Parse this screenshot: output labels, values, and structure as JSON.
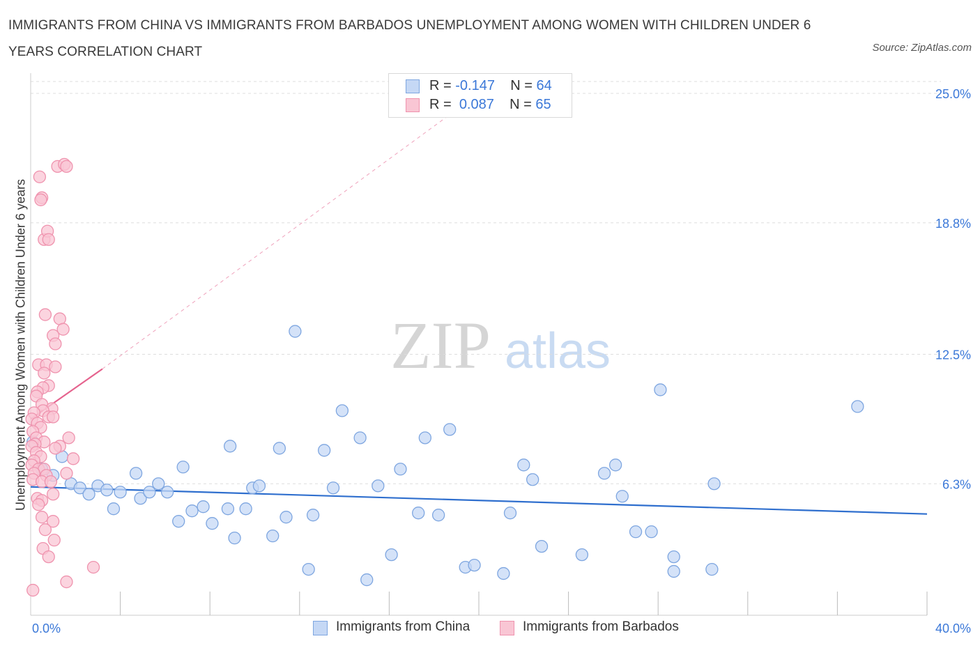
{
  "title": "IMMIGRANTS FROM CHINA VS IMMIGRANTS FROM BARBADOS UNEMPLOYMENT AMONG WOMEN WITH CHILDREN UNDER 6 YEARS CORRELATION CHART",
  "source": "Source: ZipAtlas.com",
  "watermark": {
    "zip": "ZIP",
    "atlas": "atlas"
  },
  "legend_top": {
    "china": {
      "r_label": "R =",
      "r_value": "-0.147",
      "n_label": "N =",
      "n_value": "64"
    },
    "barbados": {
      "r_label": "R =",
      "r_value": "0.087",
      "n_label": "N =",
      "n_value": "65"
    }
  },
  "legend_bottom": {
    "china": "Immigrants from China",
    "barbados": "Immigrants from Barbados"
  },
  "colors": {
    "china_fill": "#c5d8f5",
    "china_stroke": "#7ea6e0",
    "china_line": "#2f6fce",
    "barbados_fill": "#f9c6d4",
    "barbados_stroke": "#ef93ae",
    "barbados_line": "#e5638e",
    "tick_label": "#3b78d8",
    "grid": "#dddddd"
  },
  "chart_data": {
    "type": "scatter",
    "title": "IMMIGRANTS FROM CHINA VS IMMIGRANTS FROM BARBADOS UNEMPLOYMENT AMONG WOMEN WITH CHILDREN UNDER 6 YEARS CORRELATION CHART",
    "xlabel": "",
    "ylabel": "Unemployment Among Women with Children Under 6 years",
    "xlim": [
      0,
      40
    ],
    "ylim": [
      0,
      25.0
    ],
    "x_tick_labels": [
      {
        "value": 0,
        "label": "0.0%"
      },
      {
        "value": 40,
        "label": "40.0%"
      }
    ],
    "y_tick_labels": [
      {
        "value": 6.3,
        "label": "6.3%"
      },
      {
        "value": 12.5,
        "label": "12.5%"
      },
      {
        "value": 18.8,
        "label": "18.8%"
      },
      {
        "value": 25.0,
        "label": "25.0%"
      }
    ],
    "x_minor_ticks": [
      4,
      8,
      12,
      16,
      20,
      24,
      28,
      32,
      36,
      40
    ],
    "grid": true,
    "legend_position": "top-center",
    "series": [
      {
        "name": "Immigrants from China",
        "color": "#7ea6e0",
        "points": [
          [
            0.1,
            8.3
          ],
          [
            0.5,
            7.0
          ],
          [
            1.4,
            7.6
          ],
          [
            1.0,
            6.7
          ],
          [
            1.8,
            6.3
          ],
          [
            2.2,
            6.1
          ],
          [
            2.6,
            5.8
          ],
          [
            3.0,
            6.2
          ],
          [
            3.4,
            6.0
          ],
          [
            3.7,
            5.1
          ],
          [
            4.0,
            5.9
          ],
          [
            4.7,
            6.8
          ],
          [
            4.9,
            5.6
          ],
          [
            5.3,
            5.9
          ],
          [
            5.7,
            6.3
          ],
          [
            6.1,
            5.9
          ],
          [
            6.6,
            4.5
          ],
          [
            6.8,
            7.1
          ],
          [
            7.2,
            5.0
          ],
          [
            7.7,
            5.2
          ],
          [
            8.1,
            4.4
          ],
          [
            8.8,
            5.1
          ],
          [
            8.9,
            8.1
          ],
          [
            9.1,
            3.7
          ],
          [
            9.6,
            5.1
          ],
          [
            9.9,
            6.1
          ],
          [
            10.2,
            6.2
          ],
          [
            10.8,
            3.8
          ],
          [
            11.1,
            8.0
          ],
          [
            11.4,
            4.7
          ],
          [
            11.8,
            13.6
          ],
          [
            12.4,
            2.2
          ],
          [
            12.6,
            4.8
          ],
          [
            13.1,
            7.9
          ],
          [
            13.5,
            6.1
          ],
          [
            13.9,
            9.8
          ],
          [
            14.7,
            8.5
          ],
          [
            15.0,
            1.7
          ],
          [
            15.5,
            6.2
          ],
          [
            16.1,
            2.9
          ],
          [
            16.5,
            7.0
          ],
          [
            17.3,
            4.9
          ],
          [
            17.6,
            8.5
          ],
          [
            18.2,
            4.8
          ],
          [
            18.7,
            8.9
          ],
          [
            19.4,
            2.3
          ],
          [
            19.8,
            2.4
          ],
          [
            21.1,
            2.0
          ],
          [
            21.4,
            4.9
          ],
          [
            22.0,
            7.2
          ],
          [
            22.4,
            6.5
          ],
          [
            22.8,
            3.3
          ],
          [
            24.6,
            2.9
          ],
          [
            25.6,
            6.8
          ],
          [
            26.1,
            7.2
          ],
          [
            26.4,
            5.7
          ],
          [
            27.0,
            4.0
          ],
          [
            27.7,
            4.0
          ],
          [
            28.1,
            10.8
          ],
          [
            28.7,
            2.8
          ],
          [
            28.7,
            2.1
          ],
          [
            30.4,
            2.2
          ],
          [
            30.5,
            6.3
          ],
          [
            36.9,
            10.0
          ]
        ]
      },
      {
        "name": "Immigrants from Barbados",
        "color": "#ef93ae",
        "points": [
          [
            0.4,
            21.0
          ],
          [
            0.5,
            20.0
          ],
          [
            0.45,
            19.9
          ],
          [
            1.2,
            21.5
          ],
          [
            1.5,
            21.6
          ],
          [
            1.6,
            21.5
          ],
          [
            0.6,
            18.0
          ],
          [
            0.75,
            18.4
          ],
          [
            0.8,
            18.0
          ],
          [
            0.65,
            14.4
          ],
          [
            1.3,
            14.2
          ],
          [
            1.45,
            13.7
          ],
          [
            1.0,
            13.4
          ],
          [
            1.1,
            13.0
          ],
          [
            0.35,
            12.0
          ],
          [
            0.7,
            12.0
          ],
          [
            1.1,
            11.9
          ],
          [
            0.6,
            11.6
          ],
          [
            0.8,
            11.0
          ],
          [
            0.55,
            10.9
          ],
          [
            0.3,
            10.7
          ],
          [
            0.25,
            10.5
          ],
          [
            0.5,
            10.1
          ],
          [
            0.95,
            9.9
          ],
          [
            0.55,
            9.8
          ],
          [
            0.15,
            9.7
          ],
          [
            0.8,
            9.5
          ],
          [
            1.0,
            9.5
          ],
          [
            0.05,
            9.4
          ],
          [
            0.3,
            9.2
          ],
          [
            0.45,
            9.0
          ],
          [
            0.1,
            8.8
          ],
          [
            0.25,
            8.5
          ],
          [
            0.6,
            8.3
          ],
          [
            0.2,
            8.2
          ],
          [
            0.05,
            8.1
          ],
          [
            1.3,
            8.1
          ],
          [
            1.7,
            8.5
          ],
          [
            1.1,
            8.0
          ],
          [
            0.25,
            7.8
          ],
          [
            0.45,
            7.6
          ],
          [
            1.9,
            7.5
          ],
          [
            0.15,
            7.4
          ],
          [
            0.05,
            7.2
          ],
          [
            0.35,
            7.0
          ],
          [
            0.6,
            7.0
          ],
          [
            0.15,
            6.8
          ],
          [
            0.7,
            6.7
          ],
          [
            1.6,
            6.8
          ],
          [
            0.1,
            6.5
          ],
          [
            0.5,
            6.4
          ],
          [
            0.9,
            6.4
          ],
          [
            1.0,
            5.8
          ],
          [
            0.3,
            5.6
          ],
          [
            0.5,
            5.5
          ],
          [
            0.35,
            5.3
          ],
          [
            0.5,
            4.7
          ],
          [
            1.0,
            4.5
          ],
          [
            0.65,
            4.1
          ],
          [
            1.05,
            3.6
          ],
          [
            0.55,
            3.2
          ],
          [
            0.8,
            2.8
          ],
          [
            2.8,
            2.3
          ],
          [
            1.6,
            1.6
          ],
          [
            0.1,
            1.2
          ]
        ]
      }
    ],
    "trendlines": [
      {
        "series": "Immigrants from China",
        "x": [
          0,
          40
        ],
        "y": [
          6.15,
          4.85
        ],
        "style": "solid"
      },
      {
        "series": "Immigrants from Barbados",
        "x": [
          0,
          3.2
        ],
        "y": [
          9.4,
          11.8
        ],
        "style": "solid"
      },
      {
        "series": "Immigrants from Barbados",
        "x": [
          3.2,
          20
        ],
        "y": [
          11.8,
          25.0
        ],
        "style": "dashed"
      }
    ]
  }
}
